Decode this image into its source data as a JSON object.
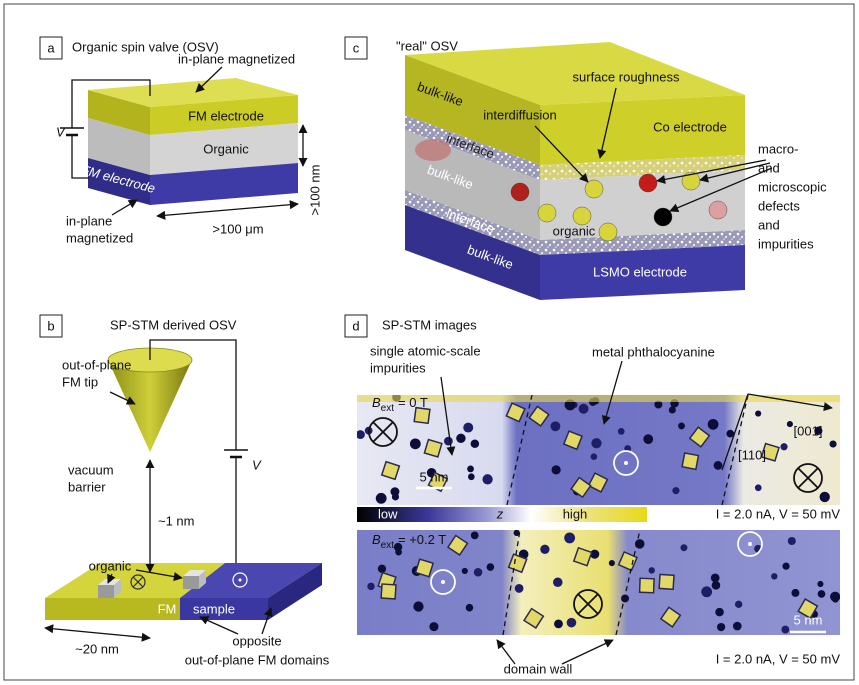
{
  "panels": {
    "a": {
      "label": "a",
      "title": "Organic spin valve (OSV)",
      "top_magnetization": "in-plane magnetized",
      "top_electrode": "FM electrode",
      "voltage": "V",
      "middle_layer": "Organic",
      "thickness": ">100 nm",
      "bottom_electrode": "FM electrode",
      "bottom_magnetization": [
        "in-plane",
        "magnetized"
      ],
      "width": ">100 μm"
    },
    "b": {
      "label": "b",
      "title": "SP-STM derived OSV",
      "tip": [
        "out-of-plane",
        "FM tip"
      ],
      "voltage": "V",
      "barrier": [
        "vacuum",
        "barrier"
      ],
      "gap": "~1 nm",
      "molecule": "organic",
      "fm": "FM",
      "sample": "sample",
      "width": "~20 nm",
      "domains": [
        "opposite",
        "out-of-plane FM domains"
      ]
    },
    "c": {
      "label": "c",
      "title": "\"real\" OSV",
      "layer_labels": [
        "bulk-like",
        "interface",
        "bulk-like",
        "interface",
        "bulk-like"
      ],
      "surface": "surface roughness",
      "interdiffusion": "interdiffusion",
      "top_electrode": "Co electrode",
      "defects": [
        "macro-",
        "and",
        "microscopic",
        "defects",
        "and",
        "impurities"
      ],
      "organic": "organic",
      "bottom_electrode": "LSMO electrode"
    },
    "d": {
      "label": "d",
      "title": "SP-STM images",
      "impurities": [
        "single atomic-scale",
        "impurities"
      ],
      "molecule": "metal phthalocyanine",
      "field_1": {
        "symbol": "B",
        "subscript": "ext",
        "value": "= 0 T"
      },
      "direction_1": "[001]",
      "direction_2": "[110]",
      "scale_1": "5 nm",
      "colorbar": {
        "low": "low",
        "quantity": "z",
        "high": "high"
      },
      "conditions_1": "I = 2.0 nA, V = 50 mV",
      "field_2": {
        "symbol": "B",
        "subscript": "ext",
        "value": "= +0.2 T"
      },
      "scale_2": "5 nm",
      "conditions_2": "I = 2.0 nA, V = 50 mV",
      "domain_wall": "domain wall"
    }
  }
}
